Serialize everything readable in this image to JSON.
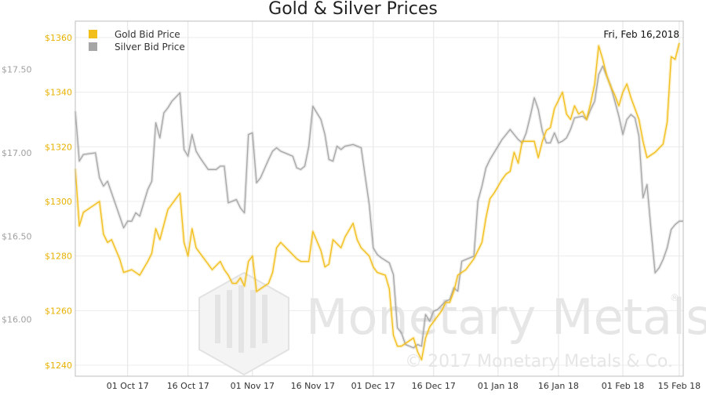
{
  "chart_data": {
    "type": "line",
    "title": "Gold & Silver Prices",
    "date_label": "Fri, Feb 16,2018",
    "colors": {
      "gold": "#F2BE1A",
      "silver": "#A6A6A6",
      "gold_tick": "#E8B100",
      "silver_tick": "#A0A0A0"
    },
    "x_ticks": [
      {
        "label": "01 Oct 17",
        "t": 13
      },
      {
        "label": "16 Oct 17",
        "t": 28
      },
      {
        "label": "01 Nov 17",
        "t": 44
      },
      {
        "label": "16 Nov 17",
        "t": 59
      },
      {
        "label": "01 Dec 17",
        "t": 74
      },
      {
        "label": "16 Dec 17",
        "t": 89
      },
      {
        "label": "01 Jan 18",
        "t": 105
      },
      {
        "label": "16 Jan 18",
        "t": 120
      },
      {
        "label": "01 Feb 18",
        "t": 136
      },
      {
        "label": "15 Feb 18",
        "t": 150
      }
    ],
    "x_range": [
      0,
      151
    ],
    "y_left": {
      "ticks": [
        {
          "value": 17.5,
          "label": "$17.50"
        },
        {
          "value": 17.0,
          "label": "$17.00"
        },
        {
          "value": 16.5,
          "label": "$16.50"
        },
        {
          "value": 16.0,
          "label": "$16.00"
        }
      ],
      "range": [
        15.66,
        17.79
      ]
    },
    "y_right": {
      "ticks": [
        {
          "value": 1360,
          "label": "$1360"
        },
        {
          "value": 1340,
          "label": "$1340"
        },
        {
          "value": 1320,
          "label": "$1320"
        },
        {
          "value": 1300,
          "label": "$1300"
        },
        {
          "value": 1280,
          "label": "$1280"
        },
        {
          "value": 1260,
          "label": "$1260"
        },
        {
          "value": 1240,
          "label": "$1240"
        }
      ],
      "range": [
        1236,
        1366
      ]
    },
    "series": [
      {
        "name": "Gold Bid Price",
        "axis": "right",
        "points": [
          [
            0,
            1312
          ],
          [
            1,
            1291
          ],
          [
            2,
            1296
          ],
          [
            5,
            1299
          ],
          [
            6,
            1300
          ],
          [
            7,
            1288
          ],
          [
            8,
            1285
          ],
          [
            9,
            1286
          ],
          [
            11,
            1279
          ],
          [
            12,
            1274
          ],
          [
            14,
            1275
          ],
          [
            15,
            1274
          ],
          [
            16,
            1273
          ],
          [
            18,
            1278
          ],
          [
            19,
            1281
          ],
          [
            20,
            1290
          ],
          [
            21,
            1286
          ],
          [
            23,
            1297
          ],
          [
            26,
            1303
          ],
          [
            27,
            1285
          ],
          [
            28,
            1280
          ],
          [
            29,
            1290
          ],
          [
            30,
            1283
          ],
          [
            31,
            1281
          ],
          [
            33,
            1277
          ],
          [
            34,
            1275
          ],
          [
            36,
            1278
          ],
          [
            37,
            1275
          ],
          [
            38,
            1273
          ],
          [
            39,
            1270
          ],
          [
            40,
            1270
          ],
          [
            41,
            1272
          ],
          [
            42,
            1269
          ],
          [
            43,
            1278
          ],
          [
            44,
            1280
          ],
          [
            45,
            1267
          ],
          [
            46,
            1268
          ],
          [
            48,
            1270
          ],
          [
            49,
            1274
          ],
          [
            50,
            1283
          ],
          [
            51,
            1285
          ],
          [
            53,
            1282
          ],
          [
            55,
            1279
          ],
          [
            56,
            1278
          ],
          [
            58,
            1278
          ],
          [
            59,
            1289
          ],
          [
            61,
            1282
          ],
          [
            62,
            1276
          ],
          [
            63,
            1277
          ],
          [
            64,
            1286
          ],
          [
            66,
            1283
          ],
          [
            67,
            1287
          ],
          [
            69,
            1292
          ],
          [
            70,
            1286
          ],
          [
            71,
            1283
          ],
          [
            73,
            1280
          ],
          [
            74,
            1276
          ],
          [
            75,
            1274
          ],
          [
            77,
            1273
          ],
          [
            78,
            1268
          ],
          [
            79,
            1251
          ],
          [
            80,
            1247
          ],
          [
            81,
            1247
          ],
          [
            82,
            1248
          ],
          [
            84,
            1250
          ],
          [
            85,
            1245
          ],
          [
            86,
            1242
          ],
          [
            87,
            1250
          ],
          [
            88,
            1254
          ],
          [
            89,
            1256
          ],
          [
            91,
            1260
          ],
          [
            92,
            1263
          ],
          [
            93,
            1263
          ],
          [
            94,
            1267
          ],
          [
            95,
            1273
          ],
          [
            97,
            1275
          ],
          [
            99,
            1279
          ],
          [
            101,
            1285
          ],
          [
            102,
            1294
          ],
          [
            103,
            1301
          ],
          [
            104,
            1303
          ],
          [
            106,
            1308
          ],
          [
            107,
            1310
          ],
          [
            108,
            1311
          ],
          [
            109,
            1318
          ],
          [
            110,
            1314
          ],
          [
            111,
            1322
          ],
          [
            114,
            1322
          ],
          [
            115,
            1316
          ],
          [
            116,
            1322
          ],
          [
            117,
            1326
          ],
          [
            118,
            1327
          ],
          [
            119,
            1334
          ],
          [
            121,
            1340
          ],
          [
            122,
            1332
          ],
          [
            123,
            1330
          ],
          [
            124,
            1335
          ],
          [
            125,
            1332
          ],
          [
            126,
            1333
          ],
          [
            127,
            1330
          ],
          [
            128,
            1336
          ],
          [
            129,
            1343
          ],
          [
            130,
            1357
          ],
          [
            131,
            1352
          ],
          [
            132,
            1346
          ],
          [
            133,
            1342
          ],
          [
            134,
            1339
          ],
          [
            135,
            1335
          ],
          [
            136,
            1340
          ],
          [
            137,
            1343
          ],
          [
            138,
            1338
          ],
          [
            139,
            1334
          ],
          [
            140,
            1330
          ],
          [
            141,
            1322
          ],
          [
            142,
            1316
          ],
          [
            144,
            1318
          ],
          [
            146,
            1321
          ],
          [
            147,
            1329
          ],
          [
            148,
            1353
          ],
          [
            149,
            1352
          ],
          [
            150,
            1358
          ]
        ]
      },
      {
        "name": "Silver Bid Price",
        "axis": "left",
        "points": [
          [
            0,
            17.25
          ],
          [
            1,
            16.95
          ],
          [
            2,
            16.99
          ],
          [
            5,
            17.0
          ],
          [
            6,
            16.85
          ],
          [
            7,
            16.8
          ],
          [
            8,
            16.83
          ],
          [
            11,
            16.62
          ],
          [
            12,
            16.55
          ],
          [
            13,
            16.59
          ],
          [
            14,
            16.59
          ],
          [
            15,
            16.64
          ],
          [
            16,
            16.62
          ],
          [
            18,
            16.78
          ],
          [
            19,
            16.83
          ],
          [
            20,
            17.18
          ],
          [
            21,
            17.09
          ],
          [
            22,
            17.24
          ],
          [
            23,
            17.27
          ],
          [
            24,
            17.31
          ],
          [
            26,
            17.36
          ],
          [
            27,
            17.02
          ],
          [
            28,
            16.98
          ],
          [
            29,
            17.11
          ],
          [
            30,
            17.01
          ],
          [
            31,
            16.97
          ],
          [
            33,
            16.9
          ],
          [
            35,
            16.9
          ],
          [
            36,
            16.92
          ],
          [
            37,
            16.92
          ],
          [
            38,
            16.7
          ],
          [
            40,
            16.72
          ],
          [
            41,
            16.67
          ],
          [
            42,
            16.64
          ],
          [
            43,
            17.11
          ],
          [
            44,
            17.12
          ],
          [
            45,
            16.82
          ],
          [
            46,
            16.85
          ],
          [
            48,
            16.96
          ],
          [
            49,
            17.01
          ],
          [
            50,
            17.03
          ],
          [
            51,
            17.01
          ],
          [
            52,
            17.0
          ],
          [
            54,
            16.98
          ],
          [
            55,
            16.91
          ],
          [
            56,
            16.9
          ],
          [
            57,
            16.92
          ],
          [
            58,
            17.04
          ],
          [
            59,
            17.28
          ],
          [
            61,
            17.2
          ],
          [
            62,
            17.11
          ],
          [
            63,
            16.96
          ],
          [
            64,
            16.95
          ],
          [
            65,
            17.04
          ],
          [
            66,
            17.02
          ],
          [
            67,
            17.04
          ],
          [
            69,
            17.05
          ],
          [
            70,
            17.04
          ],
          [
            71,
            17.03
          ],
          [
            72,
            16.86
          ],
          [
            73,
            16.69
          ],
          [
            74,
            16.43
          ],
          [
            75,
            16.39
          ],
          [
            76,
            16.37
          ],
          [
            78,
            16.34
          ],
          [
            79,
            16.27
          ],
          [
            80,
            15.95
          ],
          [
            81,
            15.92
          ],
          [
            82,
            15.85
          ],
          [
            83,
            15.84
          ],
          [
            84,
            15.83
          ],
          [
            85,
            15.85
          ],
          [
            86,
            15.84
          ],
          [
            87,
            16.03
          ],
          [
            88,
            15.99
          ],
          [
            89,
            16.05
          ],
          [
            90,
            16.06
          ],
          [
            92,
            16.11
          ],
          [
            93,
            16.12
          ],
          [
            94,
            16.19
          ],
          [
            95,
            16.17
          ],
          [
            96,
            16.35
          ],
          [
            97,
            16.36
          ],
          [
            99,
            16.38
          ],
          [
            100,
            16.71
          ],
          [
            101,
            16.8
          ],
          [
            102,
            16.91
          ],
          [
            103,
            16.96
          ],
          [
            106,
            17.08
          ],
          [
            107,
            17.11
          ],
          [
            108,
            17.14
          ],
          [
            109,
            17.11
          ],
          [
            110,
            17.08
          ],
          [
            111,
            17.06
          ],
          [
            112,
            17.12
          ],
          [
            113,
            17.22
          ],
          [
            114,
            17.33
          ],
          [
            115,
            17.26
          ],
          [
            116,
            17.13
          ],
          [
            117,
            17.06
          ],
          [
            118,
            17.06
          ],
          [
            119,
            17.12
          ],
          [
            120,
            17.06
          ],
          [
            121,
            17.07
          ],
          [
            122,
            17.09
          ],
          [
            123,
            17.14
          ],
          [
            124,
            17.21
          ],
          [
            126,
            17.22
          ],
          [
            127,
            17.2
          ],
          [
            128,
            17.26
          ],
          [
            129,
            17.31
          ],
          [
            130,
            17.47
          ],
          [
            131,
            17.52
          ],
          [
            133,
            17.4
          ],
          [
            135,
            17.22
          ],
          [
            136,
            17.11
          ],
          [
            137,
            17.2
          ],
          [
            138,
            17.23
          ],
          [
            139,
            17.21
          ],
          [
            140,
            17.1
          ],
          [
            141,
            16.73
          ],
          [
            142,
            16.81
          ],
          [
            143,
            16.54
          ],
          [
            144,
            16.28
          ],
          [
            145,
            16.31
          ],
          [
            146,
            16.36
          ],
          [
            147,
            16.43
          ],
          [
            148,
            16.54
          ],
          [
            149,
            16.57
          ],
          [
            150,
            16.59
          ],
          [
            151,
            16.59
          ]
        ]
      }
    ],
    "legend_position": "top-left",
    "grid": true
  },
  "watermark": {
    "brand": "Monetary Metals",
    "registered": "®",
    "copyright": "© 2017 Monetary Metals & Co."
  }
}
